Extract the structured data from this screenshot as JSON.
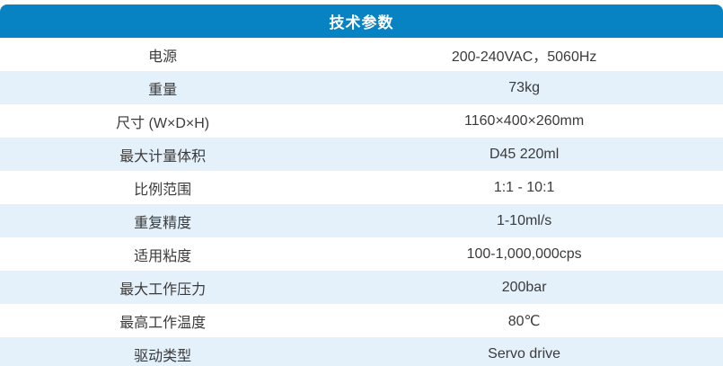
{
  "colors": {
    "header_blue": "#0782c3",
    "row_alt_blue": "#e4f1fb",
    "row_white": "#ffffff",
    "text": "#3b3b3b",
    "header_text": "#ffffff"
  },
  "table": {
    "title": "技术参数",
    "rows": [
      {
        "label": "电源",
        "value": "200-240VAC，5060Hz"
      },
      {
        "label": "重量",
        "value": "73kg"
      },
      {
        "label": "尺寸 (W×D×H)",
        "value": "1160×400×260mm"
      },
      {
        "label": "最大计量体积",
        "value": "D45 220ml"
      },
      {
        "label": "比例范围",
        "value": "1:1 - 10:1"
      },
      {
        "label": "重复精度",
        "value": "1-10ml/s"
      },
      {
        "label": "适用粘度",
        "value": "100-1,000,000cps"
      },
      {
        "label": "最大工作压力",
        "value": "200bar"
      },
      {
        "label": "最高工作温度",
        "value": "80℃"
      },
      {
        "label": "驱动类型",
        "value": "Servo drive"
      }
    ]
  }
}
